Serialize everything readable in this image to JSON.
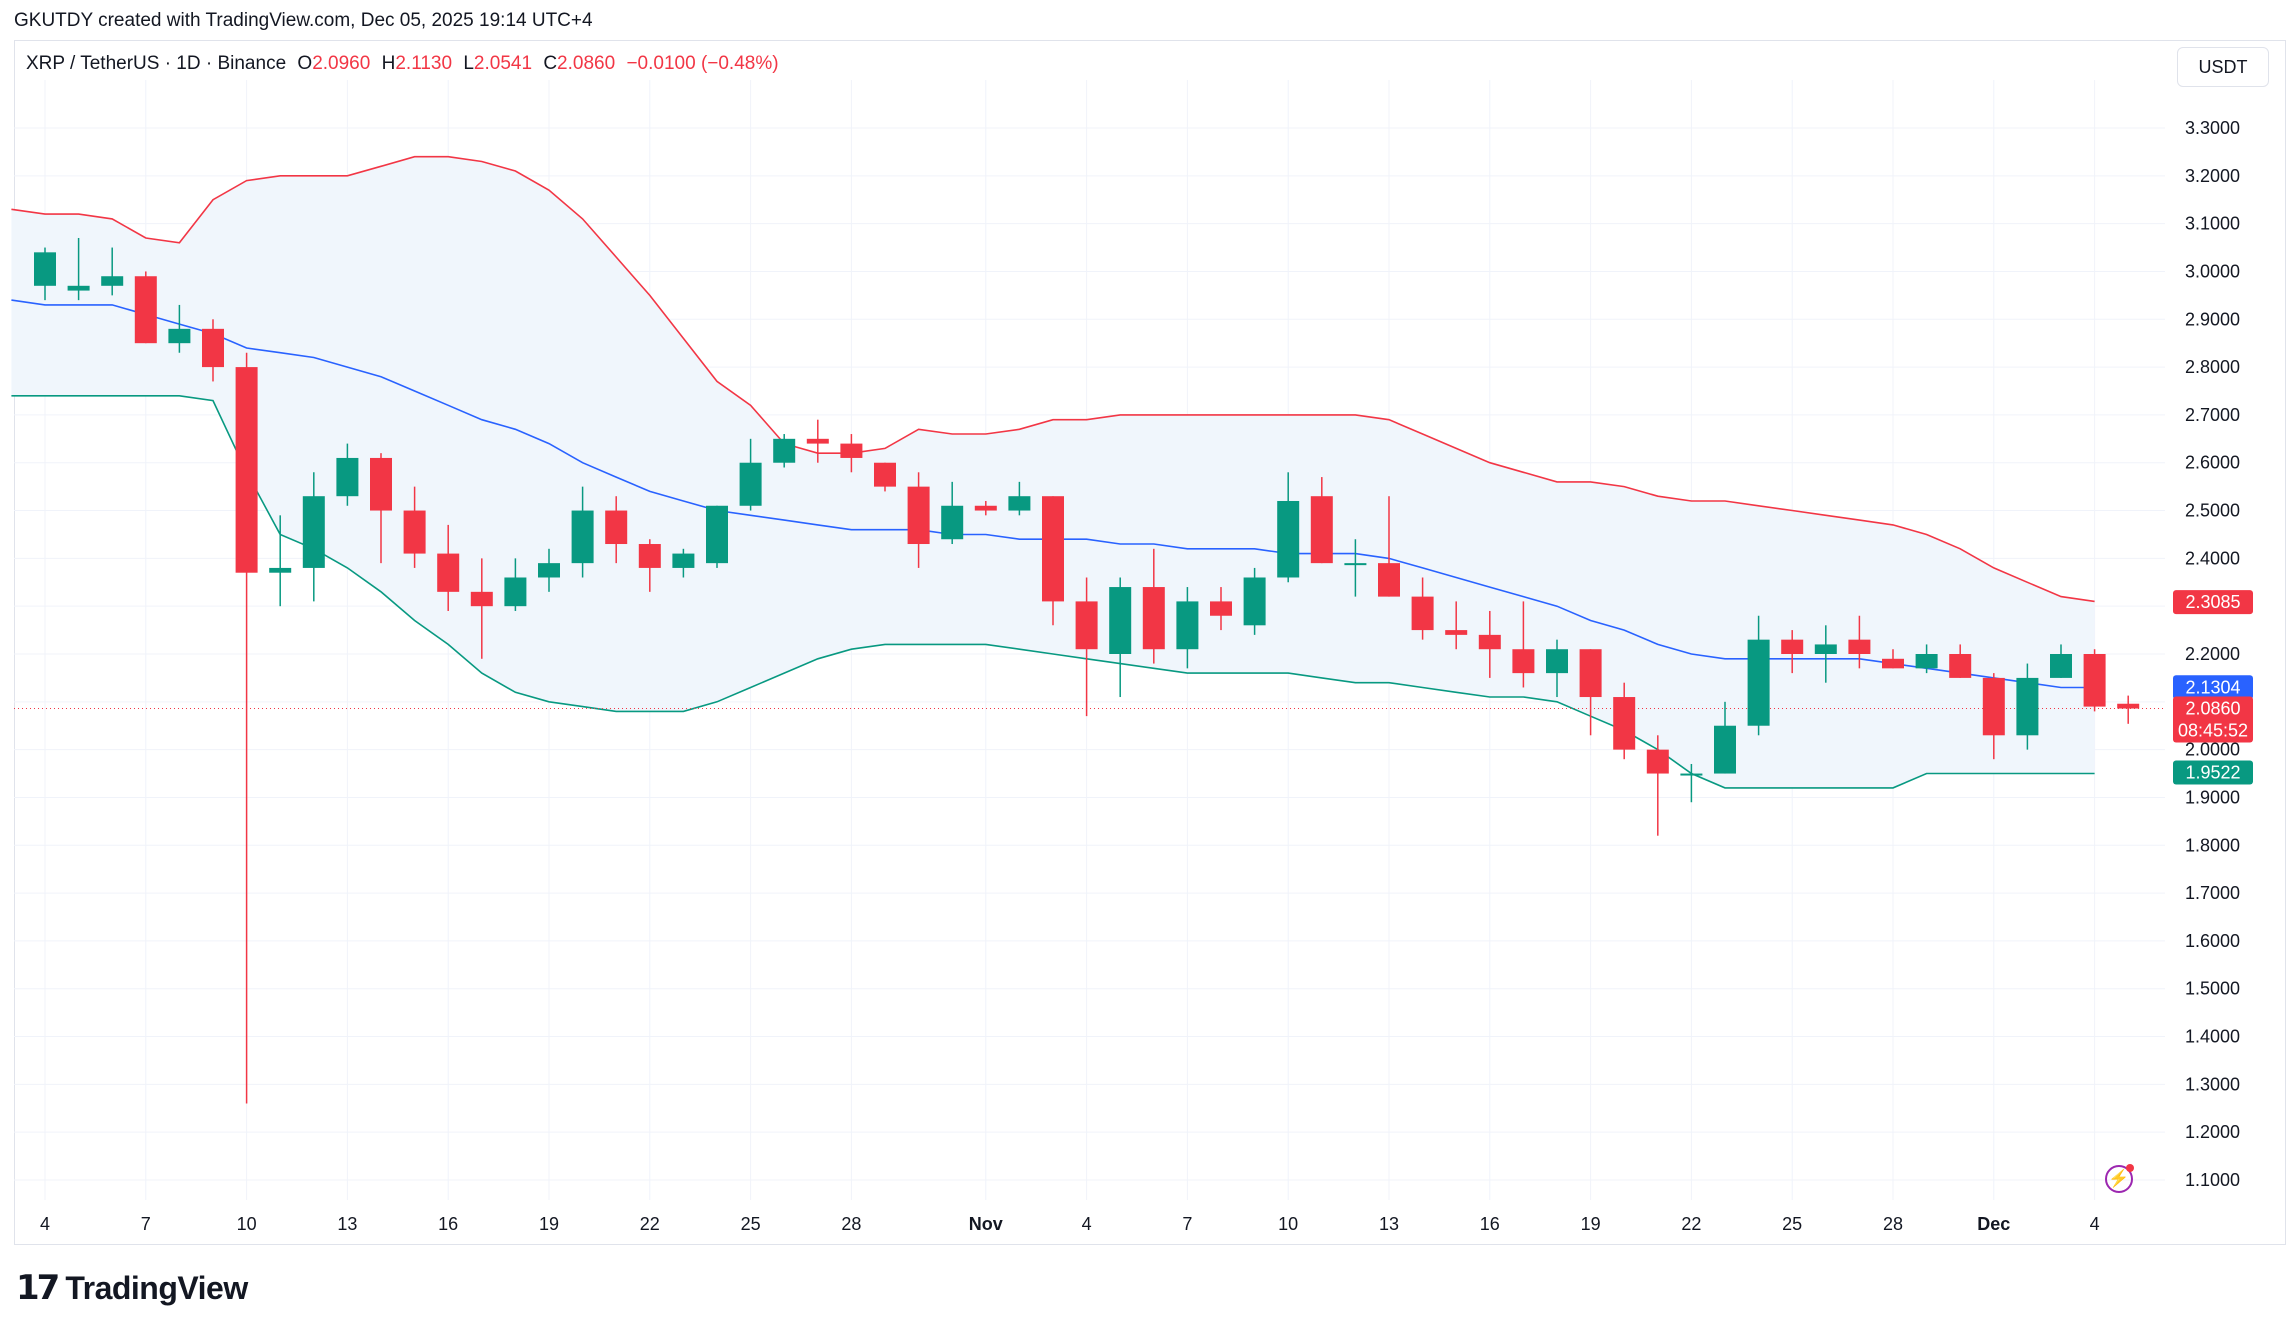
{
  "header": {
    "author_line": "GKUTDY created with TradingView.com, Dec 05, 2025 19:14 UTC+4"
  },
  "legend": {
    "symbol": "XRP / TetherUS · 1D · Binance",
    "o_label": "O",
    "o_value": "2.0960",
    "h_label": "H",
    "h_value": "2.1130",
    "l_label": "L",
    "l_value": "2.0541",
    "c_label": "C",
    "c_value": "2.0860",
    "change": "−0.0100 (−0.48%)"
  },
  "currency_button": "USDT",
  "footer": {
    "brand": "TradingView"
  },
  "colors": {
    "up": "#089981",
    "down": "#f23645",
    "basis": "#2962ff",
    "band_fill": "#f0f6fc"
  },
  "icons": [
    "tradingview-logo-icon",
    "lightning-alert-icon"
  ],
  "chart_data": {
    "type": "candlestick",
    "y_axis_ticks": [
      "3.3000",
      "3.2000",
      "3.1000",
      "3.0000",
      "2.9000",
      "2.8000",
      "2.7000",
      "2.6000",
      "2.5000",
      "2.4000",
      "2.3000",
      "2.2000",
      "2.1000",
      "2.0000",
      "1.9000",
      "1.8000",
      "1.7000",
      "1.6000",
      "1.5000",
      "1.4000",
      "1.3000",
      "1.2000",
      "1.1000"
    ],
    "ylim": [
      1.06,
      3.33
    ],
    "x_axis_ticks": [
      {
        "label": "4",
        "i": 0
      },
      {
        "label": "7",
        "i": 3
      },
      {
        "label": "10",
        "i": 6
      },
      {
        "label": "13",
        "i": 9
      },
      {
        "label": "16",
        "i": 12
      },
      {
        "label": "19",
        "i": 15
      },
      {
        "label": "22",
        "i": 18
      },
      {
        "label": "25",
        "i": 21
      },
      {
        "label": "28",
        "i": 24
      },
      {
        "label": "Nov",
        "i": 28,
        "bold": true
      },
      {
        "label": "4",
        "i": 31
      },
      {
        "label": "7",
        "i": 34
      },
      {
        "label": "10",
        "i": 37
      },
      {
        "label": "13",
        "i": 40
      },
      {
        "label": "16",
        "i": 43
      },
      {
        "label": "19",
        "i": 46
      },
      {
        "label": "22",
        "i": 49
      },
      {
        "label": "25",
        "i": 52
      },
      {
        "label": "28",
        "i": 55
      },
      {
        "label": "Dec",
        "i": 58,
        "bold": true
      },
      {
        "label": "4",
        "i": 61
      }
    ],
    "candles": [
      {
        "o": 2.97,
        "h": 3.05,
        "l": 2.94,
        "c": 3.04
      },
      {
        "o": 2.96,
        "h": 3.07,
        "l": 2.94,
        "c": 2.97
      },
      {
        "o": 2.97,
        "h": 3.05,
        "l": 2.95,
        "c": 2.99
      },
      {
        "o": 2.99,
        "h": 3.0,
        "l": 2.85,
        "c": 2.85
      },
      {
        "o": 2.85,
        "h": 2.93,
        "l": 2.83,
        "c": 2.88
      },
      {
        "o": 2.88,
        "h": 2.9,
        "l": 2.77,
        "c": 2.8
      },
      {
        "o": 2.8,
        "h": 2.83,
        "l": 1.26,
        "c": 2.37
      },
      {
        "o": 2.37,
        "h": 2.49,
        "l": 2.3,
        "c": 2.38
      },
      {
        "o": 2.38,
        "h": 2.58,
        "l": 2.31,
        "c": 2.53
      },
      {
        "o": 2.53,
        "h": 2.64,
        "l": 2.51,
        "c": 2.61
      },
      {
        "o": 2.61,
        "h": 2.62,
        "l": 2.39,
        "c": 2.5
      },
      {
        "o": 2.5,
        "h": 2.55,
        "l": 2.38,
        "c": 2.41
      },
      {
        "o": 2.41,
        "h": 2.47,
        "l": 2.29,
        "c": 2.33
      },
      {
        "o": 2.33,
        "h": 2.4,
        "l": 2.19,
        "c": 2.3
      },
      {
        "o": 2.3,
        "h": 2.4,
        "l": 2.29,
        "c": 2.36
      },
      {
        "o": 2.36,
        "h": 2.42,
        "l": 2.33,
        "c": 2.39
      },
      {
        "o": 2.39,
        "h": 2.55,
        "l": 2.36,
        "c": 2.5
      },
      {
        "o": 2.5,
        "h": 2.53,
        "l": 2.39,
        "c": 2.43
      },
      {
        "o": 2.43,
        "h": 2.44,
        "l": 2.33,
        "c": 2.38
      },
      {
        "o": 2.38,
        "h": 2.42,
        "l": 2.36,
        "c": 2.41
      },
      {
        "o": 2.39,
        "h": 2.51,
        "l": 2.38,
        "c": 2.51
      },
      {
        "o": 2.51,
        "h": 2.65,
        "l": 2.5,
        "c": 2.6
      },
      {
        "o": 2.6,
        "h": 2.66,
        "l": 2.59,
        "c": 2.65
      },
      {
        "o": 2.65,
        "h": 2.69,
        "l": 2.6,
        "c": 2.64
      },
      {
        "o": 2.64,
        "h": 2.66,
        "l": 2.58,
        "c": 2.61
      },
      {
        "o": 2.6,
        "h": 2.6,
        "l": 2.54,
        "c": 2.55
      },
      {
        "o": 2.55,
        "h": 2.58,
        "l": 2.38,
        "c": 2.43
      },
      {
        "o": 2.44,
        "h": 2.56,
        "l": 2.43,
        "c": 2.51
      },
      {
        "o": 2.51,
        "h": 2.52,
        "l": 2.49,
        "c": 2.5
      },
      {
        "o": 2.5,
        "h": 2.56,
        "l": 2.49,
        "c": 2.53
      },
      {
        "o": 2.53,
        "h": 2.53,
        "l": 2.26,
        "c": 2.31
      },
      {
        "o": 2.31,
        "h": 2.36,
        "l": 2.07,
        "c": 2.21
      },
      {
        "o": 2.2,
        "h": 2.36,
        "l": 2.11,
        "c": 2.34
      },
      {
        "o": 2.34,
        "h": 2.42,
        "l": 2.18,
        "c": 2.21
      },
      {
        "o": 2.21,
        "h": 2.34,
        "l": 2.17,
        "c": 2.31
      },
      {
        "o": 2.31,
        "h": 2.34,
        "l": 2.25,
        "c": 2.28
      },
      {
        "o": 2.26,
        "h": 2.38,
        "l": 2.24,
        "c": 2.36
      },
      {
        "o": 2.36,
        "h": 2.58,
        "l": 2.35,
        "c": 2.52
      },
      {
        "o": 2.53,
        "h": 2.57,
        "l": 2.39,
        "c": 2.39
      },
      {
        "o": 2.39,
        "h": 2.44,
        "l": 2.32,
        "c": 2.39
      },
      {
        "o": 2.39,
        "h": 2.53,
        "l": 2.32,
        "c": 2.32
      },
      {
        "o": 2.32,
        "h": 2.36,
        "l": 2.23,
        "c": 2.25
      },
      {
        "o": 2.25,
        "h": 2.31,
        "l": 2.21,
        "c": 2.24
      },
      {
        "o": 2.24,
        "h": 2.29,
        "l": 2.15,
        "c": 2.21
      },
      {
        "o": 2.21,
        "h": 2.31,
        "l": 2.13,
        "c": 2.16
      },
      {
        "o": 2.16,
        "h": 2.23,
        "l": 2.11,
        "c": 2.21
      },
      {
        "o": 2.21,
        "h": 2.21,
        "l": 2.03,
        "c": 2.11
      },
      {
        "o": 2.11,
        "h": 2.14,
        "l": 1.98,
        "c": 2.0
      },
      {
        "o": 2.0,
        "h": 2.03,
        "l": 1.82,
        "c": 1.95
      },
      {
        "o": 1.95,
        "h": 1.97,
        "l": 1.89,
        "c": 1.95
      },
      {
        "o": 1.95,
        "h": 2.1,
        "l": 1.95,
        "c": 2.05
      },
      {
        "o": 2.05,
        "h": 2.28,
        "l": 2.03,
        "c": 2.23
      },
      {
        "o": 2.23,
        "h": 2.25,
        "l": 2.16,
        "c": 2.2
      },
      {
        "o": 2.2,
        "h": 2.26,
        "l": 2.14,
        "c": 2.22
      },
      {
        "o": 2.23,
        "h": 2.28,
        "l": 2.17,
        "c": 2.2
      },
      {
        "o": 2.19,
        "h": 2.21,
        "l": 2.17,
        "c": 2.17
      },
      {
        "o": 2.17,
        "h": 2.22,
        "l": 2.16,
        "c": 2.2
      },
      {
        "o": 2.2,
        "h": 2.22,
        "l": 2.15,
        "c": 2.15
      },
      {
        "o": 2.15,
        "h": 2.16,
        "l": 1.98,
        "c": 2.03
      },
      {
        "o": 2.03,
        "h": 2.18,
        "l": 2.0,
        "c": 2.15
      },
      {
        "o": 2.15,
        "h": 2.22,
        "l": 2.15,
        "c": 2.2
      },
      {
        "o": 2.2,
        "h": 2.21,
        "l": 2.08,
        "c": 2.09
      },
      {
        "o": 2.096,
        "h": 2.113,
        "l": 2.054,
        "c": 2.086
      }
    ],
    "bollinger": {
      "upper": [
        3.13,
        3.12,
        3.12,
        3.11,
        3.07,
        3.06,
        3.15,
        3.19,
        3.2,
        3.2,
        3.2,
        3.22,
        3.24,
        3.24,
        3.23,
        3.21,
        3.17,
        3.11,
        3.03,
        2.95,
        2.86,
        2.77,
        2.72,
        2.64,
        2.62,
        2.62,
        2.63,
        2.67,
        2.66,
        2.66,
        2.67,
        2.69,
        2.69,
        2.7,
        2.7,
        2.7,
        2.7,
        2.7,
        2.7,
        2.7,
        2.7,
        2.69,
        2.66,
        2.63,
        2.6,
        2.58,
        2.56,
        2.56,
        2.55,
        2.53,
        2.52,
        2.52,
        2.51,
        2.5,
        2.49,
        2.48,
        2.47,
        2.45,
        2.42,
        2.38,
        2.35,
        2.32,
        2.31
      ],
      "basis": [
        2.94,
        2.93,
        2.93,
        2.93,
        2.91,
        2.89,
        2.87,
        2.84,
        2.83,
        2.82,
        2.8,
        2.78,
        2.75,
        2.72,
        2.69,
        2.67,
        2.64,
        2.6,
        2.57,
        2.54,
        2.52,
        2.5,
        2.49,
        2.48,
        2.47,
        2.46,
        2.46,
        2.46,
        2.45,
        2.45,
        2.44,
        2.44,
        2.44,
        2.43,
        2.43,
        2.42,
        2.42,
        2.42,
        2.41,
        2.41,
        2.41,
        2.4,
        2.38,
        2.36,
        2.34,
        2.32,
        2.3,
        2.27,
        2.25,
        2.22,
        2.2,
        2.19,
        2.19,
        2.19,
        2.19,
        2.19,
        2.18,
        2.17,
        2.16,
        2.15,
        2.14,
        2.13,
        2.13
      ],
      "lower": [
        2.74,
        2.74,
        2.74,
        2.74,
        2.74,
        2.74,
        2.73,
        2.58,
        2.45,
        2.42,
        2.38,
        2.33,
        2.27,
        2.22,
        2.16,
        2.12,
        2.1,
        2.09,
        2.08,
        2.08,
        2.08,
        2.1,
        2.13,
        2.16,
        2.19,
        2.21,
        2.22,
        2.22,
        2.22,
        2.22,
        2.21,
        2.2,
        2.19,
        2.18,
        2.17,
        2.16,
        2.16,
        2.16,
        2.16,
        2.15,
        2.14,
        2.14,
        2.13,
        2.12,
        2.11,
        2.11,
        2.1,
        2.07,
        2.04,
        2.0,
        1.95,
        1.92,
        1.92,
        1.92,
        1.92,
        1.92,
        1.92,
        1.95,
        1.95,
        1.95,
        1.95,
        1.95,
        1.95
      ]
    },
    "price_labels": [
      {
        "label": "upper-band-price-label",
        "value": "2.3085",
        "y": 2.3085,
        "color": "#f23645"
      },
      {
        "label": "basis-price-label",
        "value": "2.1304",
        "y": 2.1304,
        "color": "#2962ff"
      },
      {
        "label": "last-price-label",
        "value": "2.0860",
        "y": 2.086,
        "color": "#f23645",
        "countdown": "08:45:52"
      },
      {
        "label": "lower-band-price-label",
        "value": "1.9522",
        "y": 1.9522,
        "color": "#089981"
      }
    ],
    "last_price": 2.086
  }
}
